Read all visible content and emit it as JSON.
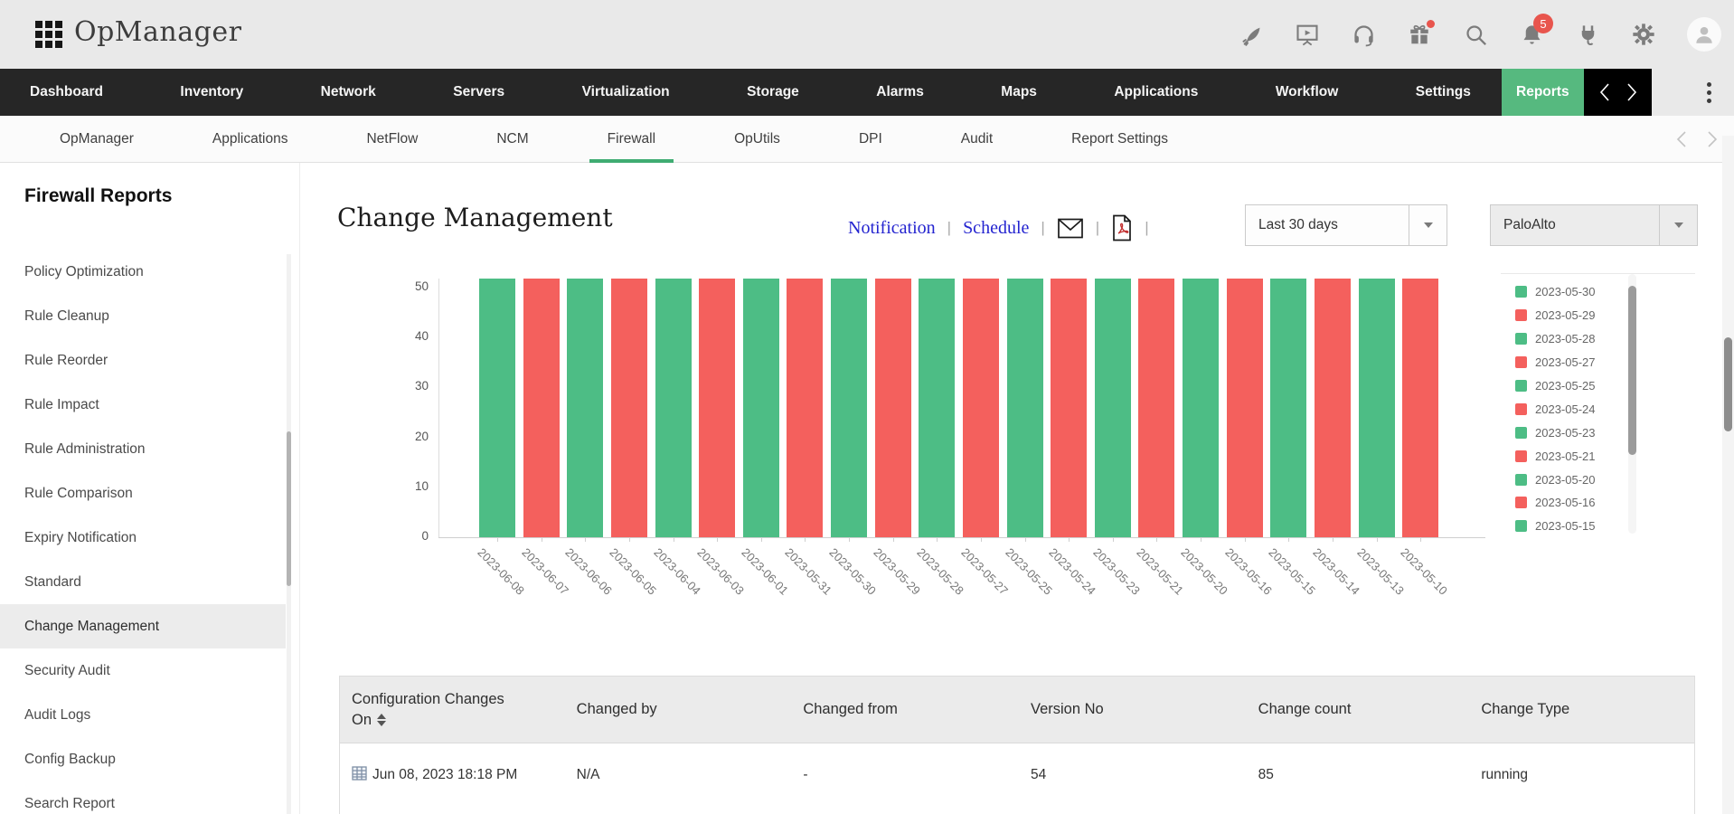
{
  "header": {
    "app_name": "OpManager",
    "notification_badge": "5",
    "icons": [
      "apps-grid-icon",
      "rocket-icon",
      "presentation-play-icon",
      "headset-icon",
      "gift-icon",
      "search-icon",
      "bell-icon",
      "plug-icon",
      "gear-icon",
      "avatar"
    ]
  },
  "nav": {
    "items": [
      "Dashboard",
      "Inventory",
      "Network",
      "Servers",
      "Virtualization",
      "Storage",
      "Alarms",
      "Maps",
      "Applications",
      "Workflow",
      "Settings"
    ],
    "active_label": "Reports",
    "active_color": "#56b97f"
  },
  "subnav": {
    "items": [
      "OpManager",
      "Applications",
      "NetFlow",
      "NCM",
      "Firewall",
      "OpUtils",
      "DPI",
      "Audit",
      "Report Settings"
    ],
    "active": "Firewall",
    "underline_color": "#3fac72"
  },
  "sidebar": {
    "title": "Firewall Reports",
    "items": [
      "Policy Optimization",
      "Rule Cleanup",
      "Rule Reorder",
      "Rule Impact",
      "Rule Administration",
      "Rule Comparison",
      "Expiry Notification",
      "Standard",
      "Change Management",
      "Security Audit",
      "Audit Logs",
      "Config Backup",
      "Search Report"
    ],
    "selected": "Change Management"
  },
  "report": {
    "title": "Change Management",
    "links": {
      "notification": "Notification",
      "schedule": "Schedule"
    },
    "filters": {
      "time_range": "Last 30 days",
      "device": "PaloAlto"
    }
  },
  "chart_data": {
    "type": "bar",
    "title": "",
    "categories": [
      "2023-06-08",
      "2023-06-07",
      "2023-06-06",
      "2023-06-05",
      "2023-06-04",
      "2023-06-03",
      "2023-06-01",
      "2023-05-31",
      "2023-05-30",
      "2023-05-29",
      "2023-05-28",
      "2023-05-27",
      "2023-05-25",
      "2023-05-24",
      "2023-05-23",
      "2023-05-21",
      "2023-05-20",
      "2023-05-16",
      "2023-05-15",
      "2023-05-14",
      "2023-05-13",
      "2023-05-10"
    ],
    "values": [
      52,
      52,
      52,
      52,
      52,
      52,
      52,
      52,
      52,
      52,
      52,
      52,
      52,
      52,
      52,
      52,
      52,
      52,
      52,
      52,
      52,
      52
    ],
    "values_note": "bar tops are clipped by the scrolled viewport; every visible bar extends above the 50 gridline",
    "ylim": [
      0,
      50
    ],
    "yticks": [
      0,
      10,
      20,
      30,
      40,
      50
    ],
    "grid": false,
    "bar_colors_alternating": [
      "#4dbd85",
      "#f4605d"
    ],
    "legend_position": "right",
    "legend": [
      {
        "label": "2023-05-30",
        "color": "#4dbd85"
      },
      {
        "label": "2023-05-29",
        "color": "#f4605d"
      },
      {
        "label": "2023-05-28",
        "color": "#4dbd85"
      },
      {
        "label": "2023-05-27",
        "color": "#f4605d"
      },
      {
        "label": "2023-05-25",
        "color": "#4dbd85"
      },
      {
        "label": "2023-05-24",
        "color": "#f4605d"
      },
      {
        "label": "2023-05-23",
        "color": "#4dbd85"
      },
      {
        "label": "2023-05-21",
        "color": "#f4605d"
      },
      {
        "label": "2023-05-20",
        "color": "#4dbd85"
      },
      {
        "label": "2023-05-16",
        "color": "#f4605d"
      },
      {
        "label": "2023-05-15",
        "color": "#4dbd85"
      }
    ]
  },
  "table": {
    "columns": [
      {
        "label": "Configuration Changes On",
        "sortable": true
      },
      {
        "label": "Changed by"
      },
      {
        "label": "Changed from"
      },
      {
        "label": "Version No"
      },
      {
        "label": "Change count"
      },
      {
        "label": "Change Type"
      }
    ],
    "rows": [
      [
        "Jun 08, 2023 18:18 PM",
        "N/A",
        "-",
        "54",
        "85",
        "running"
      ]
    ]
  }
}
